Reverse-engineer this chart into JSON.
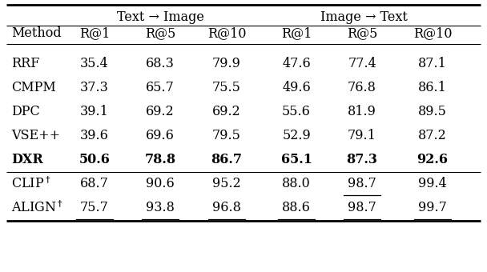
{
  "header_group1": "Text → Image",
  "header_group2": "Image → Text",
  "col_headers": [
    "Method",
    "R@1",
    "R@5",
    "R@10",
    "R@1",
    "R@5",
    "R@10"
  ],
  "rows": [
    {
      "method": "RRF",
      "bold": false,
      "dagger": false,
      "vals": [
        "35.4",
        "68.3",
        "79.9",
        "47.6",
        "77.4",
        "87.1"
      ],
      "underline": [
        false,
        false,
        false,
        false,
        false,
        false
      ]
    },
    {
      "method": "CMPM",
      "bold": false,
      "dagger": false,
      "vals": [
        "37.3",
        "65.7",
        "75.5",
        "49.6",
        "76.8",
        "86.1"
      ],
      "underline": [
        false,
        false,
        false,
        false,
        false,
        false
      ]
    },
    {
      "method": "DPC",
      "bold": false,
      "dagger": false,
      "vals": [
        "39.1",
        "69.2",
        "69.2",
        "55.6",
        "81.9",
        "89.5"
      ],
      "underline": [
        false,
        false,
        false,
        false,
        false,
        false
      ]
    },
    {
      "method": "VSE++",
      "bold": false,
      "dagger": false,
      "vals": [
        "39.6",
        "69.6",
        "79.5",
        "52.9",
        "79.1",
        "87.2"
      ],
      "underline": [
        false,
        false,
        false,
        false,
        false,
        false
      ]
    },
    {
      "method": "DXR",
      "bold": true,
      "dagger": false,
      "vals": [
        "50.6",
        "78.8",
        "86.7",
        "65.1",
        "87.3",
        "92.6"
      ],
      "underline": [
        false,
        false,
        false,
        false,
        false,
        false
      ]
    },
    {
      "method": "CLIP",
      "bold": false,
      "dagger": true,
      "vals": [
        "68.7",
        "90.6",
        "95.2",
        "88.0",
        "98.7",
        "99.4"
      ],
      "underline": [
        false,
        false,
        false,
        false,
        true,
        false
      ]
    },
    {
      "method": "ALIGN",
      "bold": false,
      "dagger": true,
      "vals": [
        "75.7",
        "93.8",
        "96.8",
        "88.6",
        "98.7",
        "99.7"
      ],
      "underline": [
        true,
        true,
        true,
        true,
        true,
        true
      ]
    }
  ],
  "separator_after_row": 4,
  "bg_color": "#ffffff",
  "text_color": "#000000",
  "fontsize": 11.5
}
